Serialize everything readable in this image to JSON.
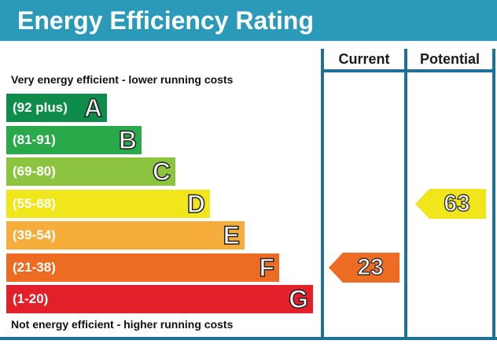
{
  "header": {
    "title": "Energy Efficiency Rating"
  },
  "columns": {
    "current_label": "Current",
    "potential_label": "Potential"
  },
  "captions": {
    "top": "Very energy efficient - lower running costs",
    "bottom": "Not energy efficient - higher running costs"
  },
  "colors": {
    "header": "#2a9ab8",
    "frame": "#1f6f96"
  },
  "chart_data": {
    "type": "bar",
    "title": "Energy Efficiency Rating",
    "bands": [
      {
        "letter": "A",
        "range": "(92 plus)",
        "min": 92,
        "max": 100,
        "color": "#0f8c4a"
      },
      {
        "letter": "B",
        "range": "(81-91)",
        "min": 81,
        "max": 91,
        "color": "#2aa94a"
      },
      {
        "letter": "C",
        "range": "(69-80)",
        "min": 69,
        "max": 80,
        "color": "#8cc43f"
      },
      {
        "letter": "D",
        "range": "(55-68)",
        "min": 55,
        "max": 68,
        "color": "#f1e51c"
      },
      {
        "letter": "E",
        "range": "(39-54)",
        "min": 39,
        "max": 54,
        "color": "#f6ad3c"
      },
      {
        "letter": "F",
        "range": "(21-38)",
        "min": 21,
        "max": 38,
        "color": "#ec6c24"
      },
      {
        "letter": "G",
        "range": "(1-20)",
        "min": 1,
        "max": 20,
        "color": "#e1202a"
      }
    ],
    "ratings": [
      {
        "column": "current",
        "value": 23,
        "band": "F",
        "color": "#ec6c24"
      },
      {
        "column": "potential",
        "value": 63,
        "band": "D",
        "color": "#f1e51c"
      }
    ]
  }
}
